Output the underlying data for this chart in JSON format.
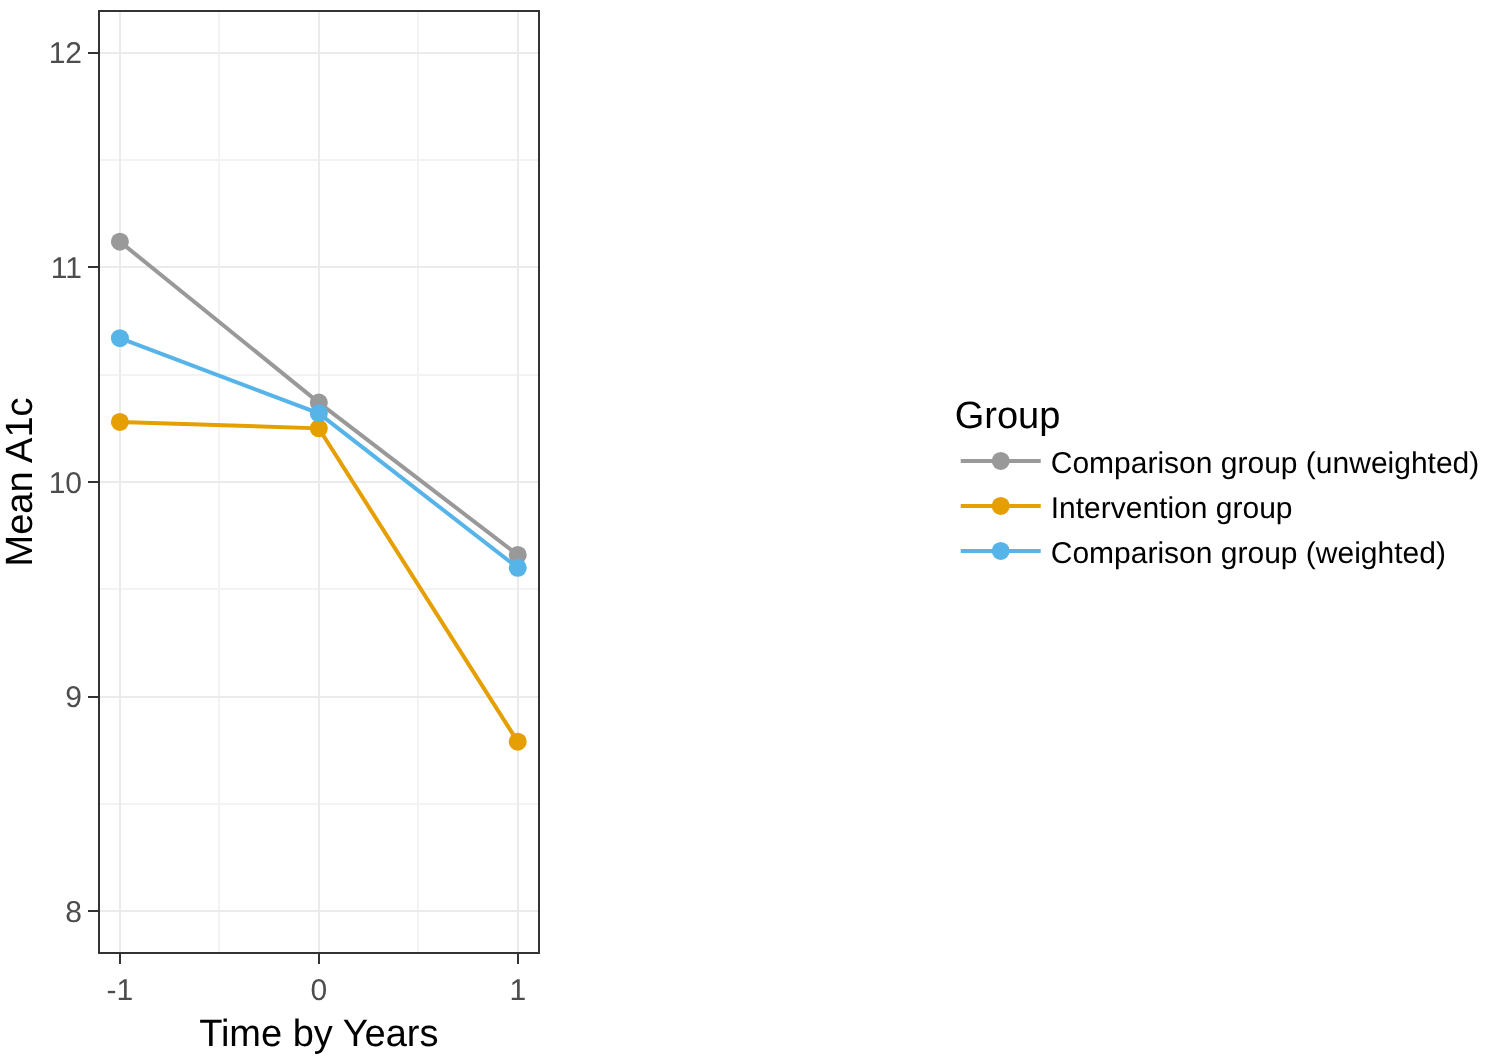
{
  "chart_data": {
    "type": "line",
    "xlabel": "Time by Years",
    "ylabel": "Mean A1c",
    "legend_title": "Group",
    "x": [
      -1,
      0,
      1
    ],
    "series": [
      {
        "name": "Comparison group (unweighted)",
        "color": "#999999",
        "values": [
          11.12,
          10.37,
          9.66
        ]
      },
      {
        "name": "Intervention group",
        "color": "#e69f00",
        "values": [
          10.28,
          10.25,
          8.79
        ]
      },
      {
        "name": "Comparison group (weighted)",
        "color": "#56b4e9",
        "values": [
          10.67,
          10.32,
          9.6
        ]
      }
    ],
    "xlim": [
      -1.1,
      1.1
    ],
    "xticks": [
      -1,
      0,
      1
    ],
    "ylim": [
      7.81,
      12.19
    ],
    "yticks": [
      8,
      9,
      10,
      11,
      12
    ],
    "grid": true,
    "legend": "right",
    "marker": "circle",
    "line_style": "solid"
  }
}
